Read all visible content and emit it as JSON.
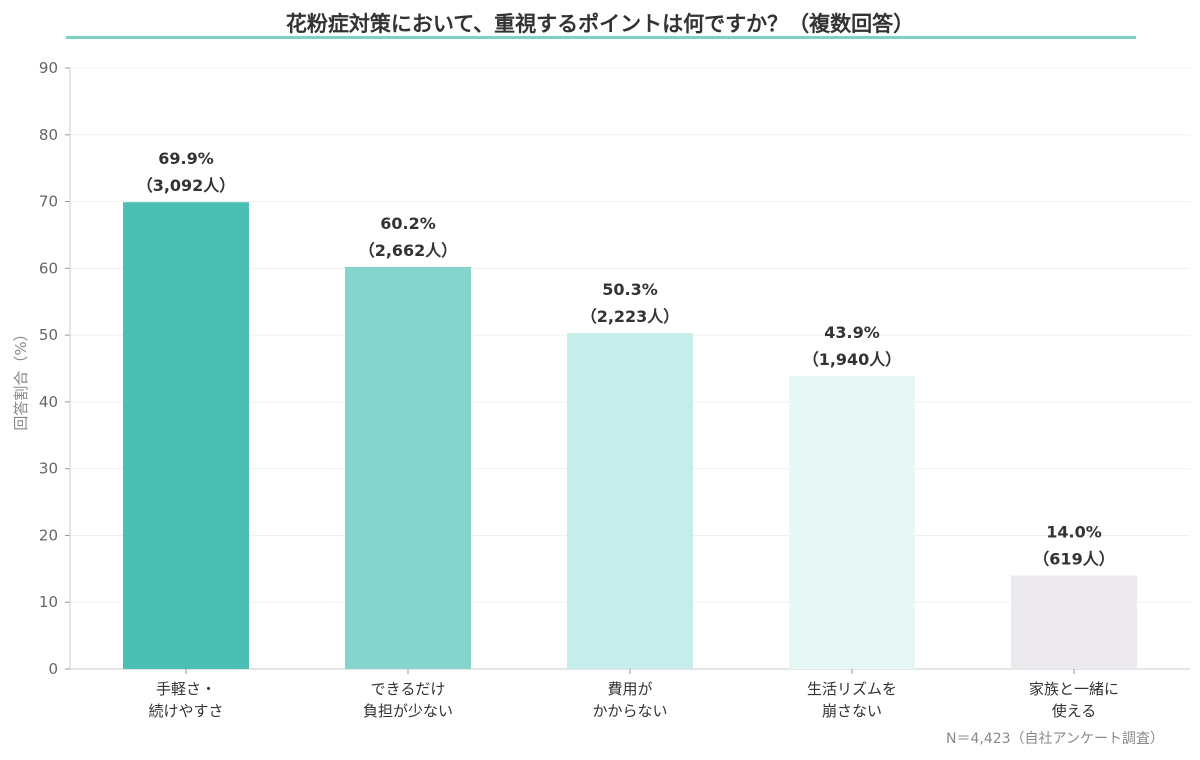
{
  "chart_data": {
    "type": "bar",
    "title": "花粉症対策において、重視するポイントは何ですか？（複数回答）",
    "ylabel": "回答割合（%）",
    "xlabel": "",
    "ylim": [
      0,
      90
    ],
    "yticks": [
      0,
      10,
      20,
      30,
      40,
      50,
      60,
      70,
      80,
      90
    ],
    "grid": true,
    "categories": [
      [
        "手軽さ・",
        "続けやすさ"
      ],
      [
        "できるだけ",
        "負担が少ない"
      ],
      [
        "費用が",
        "かからない"
      ],
      [
        "生活リズムを",
        "崩さない"
      ],
      [
        "家族と一緒に",
        "使える"
      ]
    ],
    "values": [
      69.9,
      60.2,
      50.3,
      43.9,
      14.0
    ],
    "value_labels": [
      "69.9%",
      "60.2%",
      "50.3%",
      "43.9%",
      "14.0%"
    ],
    "count_labels": [
      "（3,092人）",
      "（2,662人）",
      "（2,223人）",
      "（1,940人）",
      "（619人）"
    ],
    "colors": [
      "#4bbfb3",
      "#86d5cc",
      "#c5ede9",
      "#e6f7f6",
      "#eceaee"
    ],
    "note": "N＝4,423（自社アンケート調査）"
  }
}
